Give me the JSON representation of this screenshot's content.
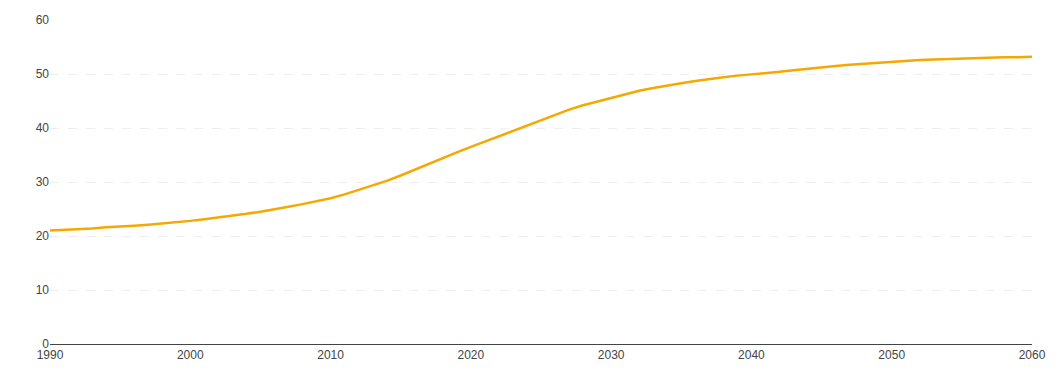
{
  "chart_data": {
    "type": "line",
    "x": [
      1990,
      1991,
      1992,
      1993,
      1994,
      1995,
      1996,
      1997,
      1998,
      1999,
      2000,
      2001,
      2002,
      2003,
      2004,
      2005,
      2006,
      2007,
      2008,
      2009,
      2010,
      2011,
      2012,
      2013,
      2014,
      2015,
      2016,
      2017,
      2018,
      2019,
      2020,
      2021,
      2022,
      2023,
      2024,
      2025,
      2026,
      2027,
      2028,
      2029,
      2030,
      2031,
      2032,
      2033,
      2034,
      2035,
      2036,
      2037,
      2038,
      2039,
      2040,
      2041,
      2042,
      2043,
      2044,
      2045,
      2046,
      2047,
      2048,
      2049,
      2050,
      2051,
      2052,
      2053,
      2054,
      2055,
      2056,
      2057,
      2058,
      2059,
      2060
    ],
    "values": [
      21.0,
      21.1,
      21.3,
      21.4,
      21.6,
      21.7,
      21.9,
      22.1,
      22.3,
      22.5,
      22.8,
      23.1,
      23.4,
      23.7,
      24.1,
      24.5,
      24.9,
      25.4,
      25.9,
      26.4,
      27.0,
      27.7,
      28.5,
      29.3,
      30.2,
      31.2,
      32.3,
      33.4,
      34.5,
      35.5,
      36.5,
      37.5,
      38.5,
      39.5,
      40.5,
      41.5,
      42.5,
      43.4,
      44.2,
      44.9,
      45.6,
      46.3,
      46.9,
      47.4,
      47.9,
      48.3,
      48.7,
      49.1,
      49.4,
      49.7,
      49.9,
      50.2,
      50.4,
      50.7,
      51.0,
      51.3,
      51.5,
      51.7,
      51.9,
      52.1,
      52.2,
      52.4,
      52.6,
      52.7,
      52.8,
      52.9,
      53.0,
      53.0,
      53.1,
      53.1,
      53.2
    ],
    "color": "#F5A800",
    "xlim": [
      1990,
      2060
    ],
    "ylim": [
      0,
      60
    ],
    "xticks": [
      1990,
      2000,
      2010,
      2020,
      2030,
      2040,
      2050,
      2060
    ],
    "yticks": [
      0,
      10,
      20,
      30,
      40,
      50,
      60
    ],
    "grid": "y"
  }
}
